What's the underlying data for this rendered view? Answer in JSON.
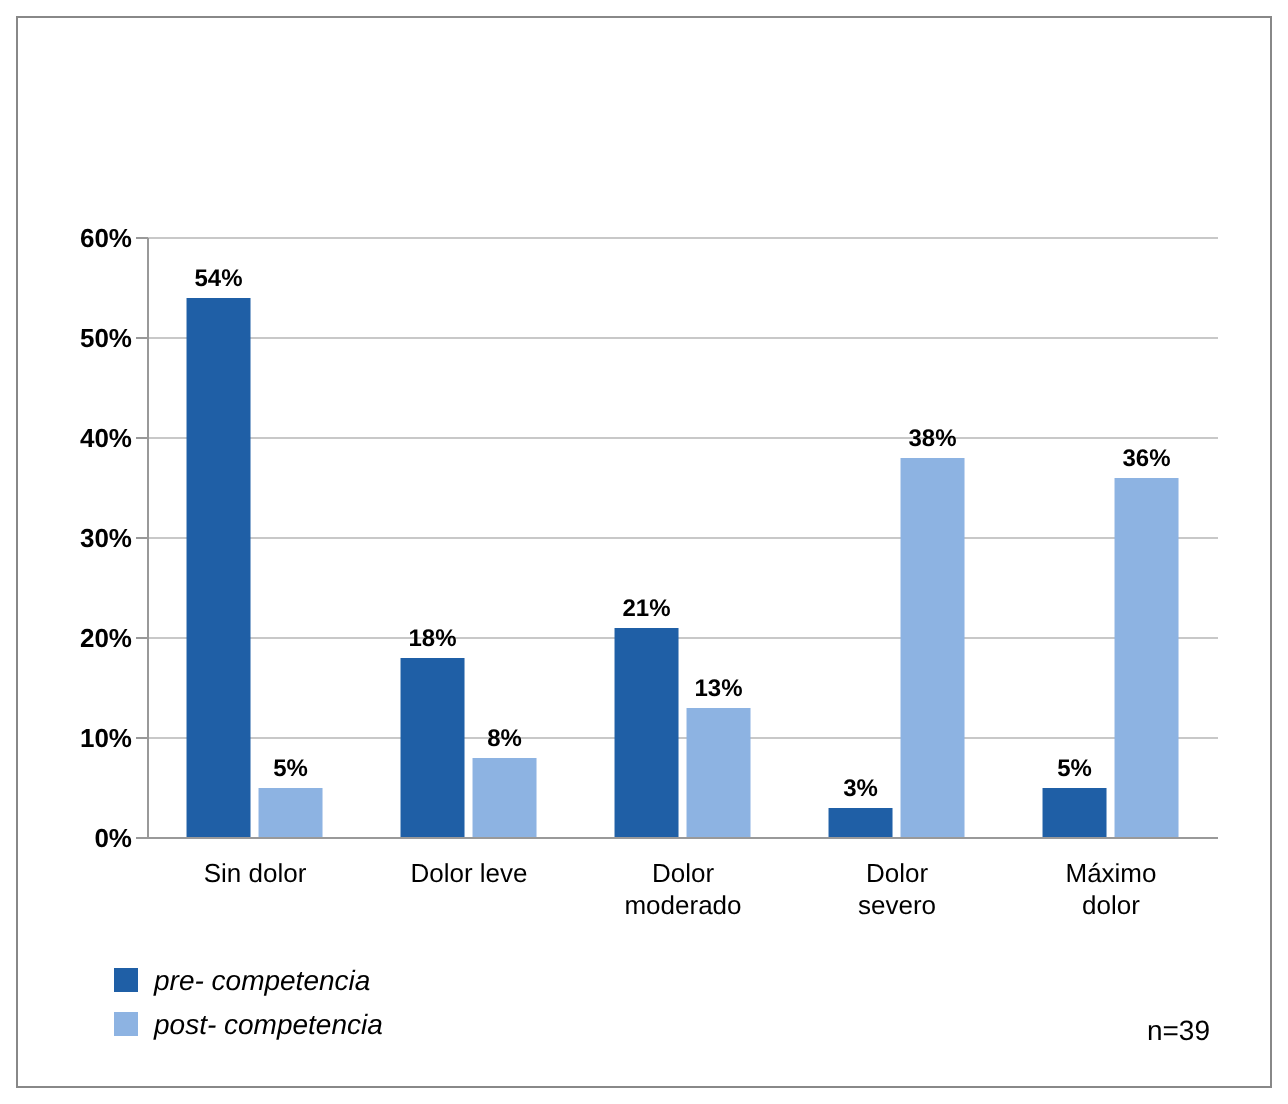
{
  "chart_data": {
    "type": "bar",
    "categories": [
      "Sin dolor",
      "Dolor leve",
      "Dolor moderado",
      "Dolor severo",
      "Máximo dolor"
    ],
    "series": [
      {
        "name": "pre- competencia",
        "color": "#1f5fa6",
        "values": [
          54,
          18,
          21,
          3,
          5
        ],
        "value_labels": [
          "54%",
          "18%",
          "21%",
          "3%",
          "5%"
        ]
      },
      {
        "name": "post- competencia",
        "color": "#8db3e2",
        "values": [
          5,
          8,
          13,
          38,
          36
        ],
        "value_labels": [
          "5%",
          "8%",
          "13%",
          "38%",
          "36%"
        ]
      }
    ],
    "ylim": [
      0,
      60
    ],
    "yticks": [
      {
        "value": 0,
        "label": "0%"
      },
      {
        "value": 10,
        "label": "10%"
      },
      {
        "value": 20,
        "label": "20%"
      },
      {
        "value": 30,
        "label": "30%"
      },
      {
        "value": 40,
        "label": "40%"
      },
      {
        "value": 50,
        "label": "50%"
      },
      {
        "value": 60,
        "label": "60%"
      }
    ],
    "grid": "y",
    "legend": "bottom left",
    "annotations": [
      "n=39"
    ]
  }
}
